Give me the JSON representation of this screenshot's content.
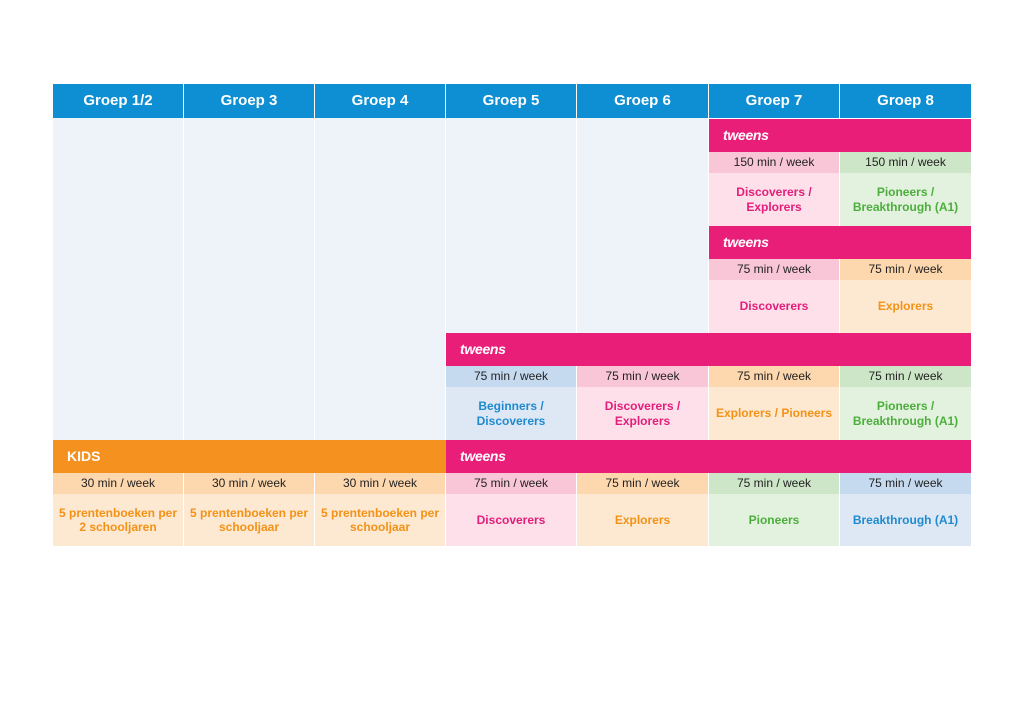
{
  "headers": [
    "Groep 1/2",
    "Groep 3",
    "Groep 4",
    "Groep 5",
    "Groep 6",
    "Groep 7",
    "Groep 8"
  ],
  "bands": {
    "tweens": "tweens",
    "kids": "KIDS"
  },
  "block1": {
    "min": [
      "150 min / week",
      "150 min / week"
    ],
    "levels": [
      "Discoverers / Explorers",
      "Pioneers / Breakthrough (A1)"
    ]
  },
  "block2": {
    "min": [
      "75 min / week",
      "75 min / week"
    ],
    "levels": [
      "Discoverers",
      "Explorers"
    ]
  },
  "block3": {
    "min": [
      "75 min / week",
      "75 min / week",
      "75 min / week",
      "75 min / week"
    ],
    "levels": [
      "Beginners / Discoverers",
      "Discoverers / Explorers",
      "Explorers / Pioneers",
      "Pioneers / Breakthrough (A1)"
    ]
  },
  "kids": {
    "min": [
      "30 min / week",
      "30 min / week",
      "30 min / week"
    ],
    "levels": [
      "5 prentenboeken per 2 schooljaren",
      "5 prentenboeken per schooljaar",
      "5 prentenboeken per schooljaar"
    ]
  },
  "block4": {
    "min": [
      "75 min / week",
      "75 min / week",
      "75 min / week",
      "75 min / week"
    ],
    "levels": [
      "Discoverers",
      "Explorers",
      "Pioneers",
      "Breakthrough (A1)"
    ]
  }
}
